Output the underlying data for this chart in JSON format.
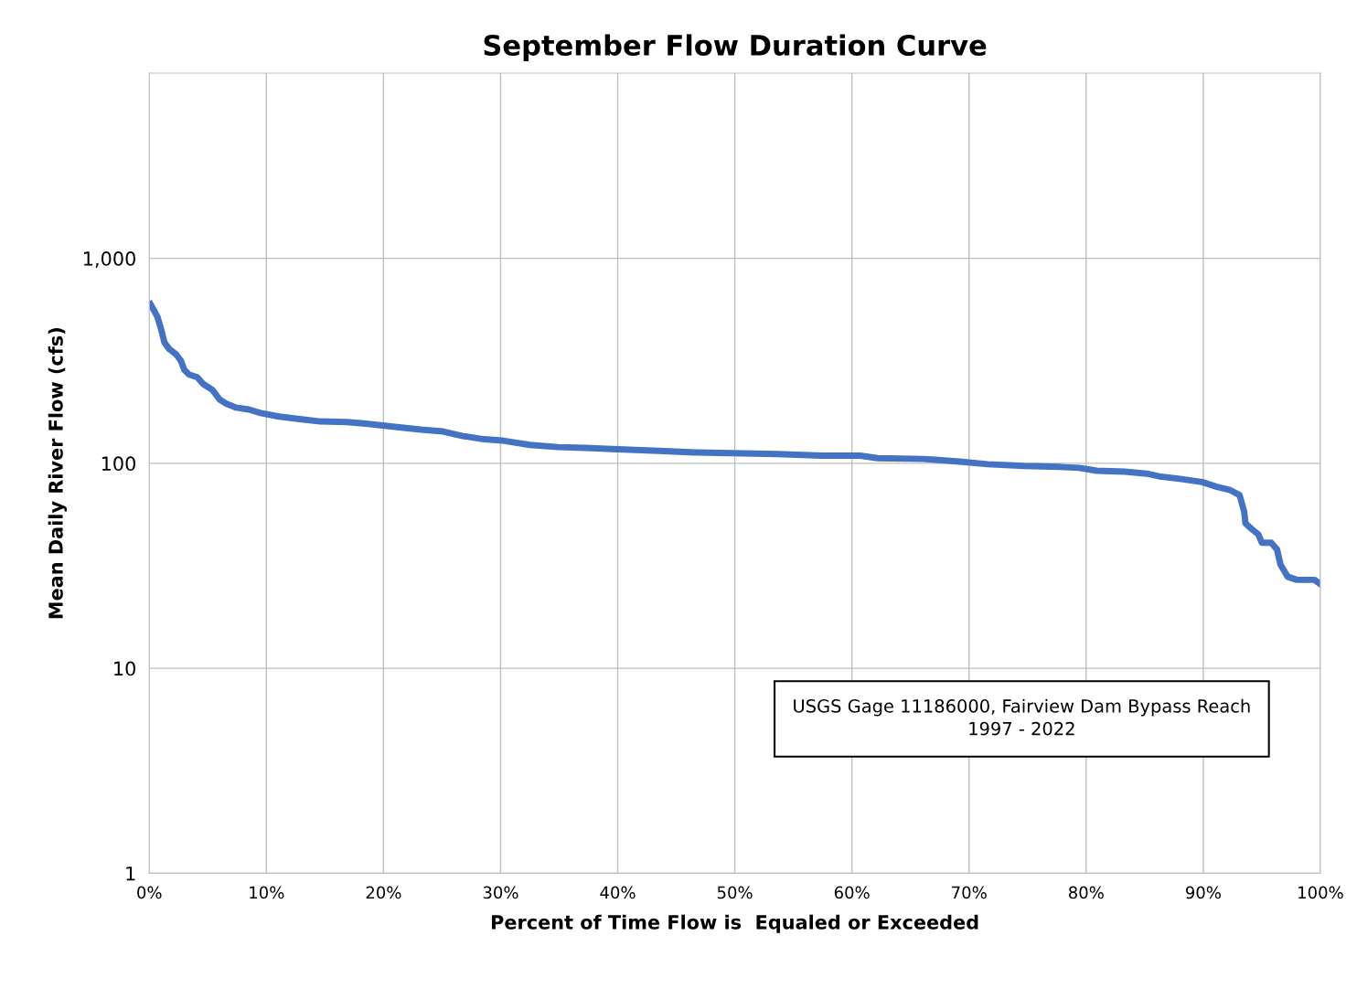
{
  "chart_data": {
    "type": "line",
    "title": "September Flow Duration Curve",
    "xlabel": "Percent of Time Flow is  Equaled or Exceeded",
    "ylabel": "Mean Daily River Flow (cfs)",
    "annotations": [
      "USGS Gage 11186000, Fairview Dam Bypass Reach\n1997 - 2022"
    ],
    "log": "y",
    "grid": true,
    "marker": "none",
    "line_style": "solid",
    "xlim": [
      0,
      100
    ],
    "xticks": [
      {
        "value": 0,
        "label": "0%"
      },
      {
        "value": 10,
        "label": "10%"
      },
      {
        "value": 20,
        "label": "20%"
      },
      {
        "value": 30,
        "label": "30%"
      },
      {
        "value": 40,
        "label": "40%"
      },
      {
        "value": 50,
        "label": "50%"
      },
      {
        "value": 60,
        "label": "60%"
      },
      {
        "value": 70,
        "label": "70%"
      },
      {
        "value": 80,
        "label": "80%"
      },
      {
        "value": 90,
        "label": "90%"
      },
      {
        "value": 100,
        "label": "100%"
      }
    ],
    "ylim": [
      1,
      8000
    ],
    "yticks": [
      1,
      10,
      100,
      {
        "value": 1000,
        "label": "1,000"
      }
    ],
    "series": [
      {
        "color": "#4472c4",
        "x": [
          0.1,
          0.4,
          0.7,
          1.0,
          1.3,
          1.7,
          2.3,
          2.7,
          3.0,
          3.4,
          4.1,
          4.6,
          5.4,
          6.0,
          6.6,
          7.4,
          8.5,
          9.5,
          11.1,
          13,
          14.6,
          16.9,
          18.5,
          20.8,
          23.2,
          25.1,
          26.7,
          28.6,
          30.2,
          32.5,
          34.9,
          37.2,
          40,
          43.5,
          46.6,
          49.7,
          53.6,
          57.5,
          60.7,
          62.2,
          66.1,
          69.2,
          71.6,
          74.7,
          77.8,
          79.4,
          80.9,
          83.3,
          85.2,
          86.4,
          88,
          89.9,
          91.1,
          92.3,
          93.1,
          93.5,
          93.6,
          94.1,
          94.7,
          95,
          95.8,
          96.3,
          96.6,
          97.2,
          98,
          99.5,
          99.9
        ],
        "values": [
          598,
          557,
          518,
          453,
          388,
          361,
          340,
          316,
          285,
          271,
          263,
          244,
          228,
          205,
          195,
          187,
          183,
          176,
          169,
          164,
          160,
          159,
          156,
          151,
          146,
          143,
          136,
          131,
          129,
          123,
          120,
          119,
          117,
          115,
          113,
          112,
          111,
          109,
          109,
          106,
          105,
          102,
          99,
          97,
          96,
          95,
          92,
          91,
          89,
          86,
          84,
          81,
          77,
          74,
          70,
          58,
          51,
          48,
          45,
          41,
          41,
          38,
          32,
          28,
          27,
          27,
          26
        ]
      }
    ]
  }
}
